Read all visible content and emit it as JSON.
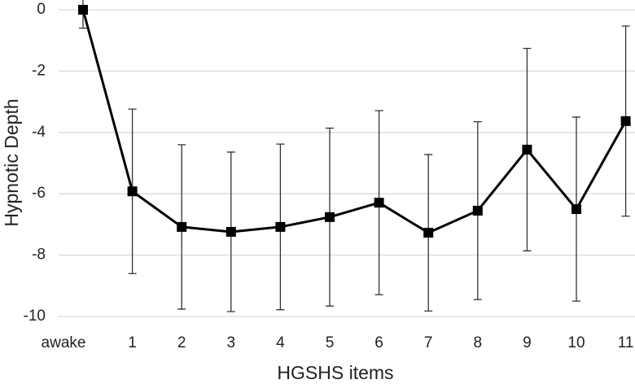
{
  "chart_data": {
    "type": "line",
    "x_label": "HGSHS items",
    "y_label": "Hypnotic Depth",
    "categories": [
      "awake",
      "1",
      "2",
      "3",
      "4",
      "5",
      "6",
      "7",
      "8",
      "9",
      "10",
      "11"
    ],
    "series": [
      {
        "color": "#000000",
        "values": [
          0,
          -5.92,
          -7.08,
          -7.24,
          -7.08,
          -6.76,
          -6.29,
          -7.27,
          -6.55,
          -4.56,
          -6.5,
          -3.63
        ],
        "errors": [
          0.6,
          2.68,
          2.68,
          2.6,
          2.7,
          2.9,
          3.0,
          2.55,
          2.9,
          3.3,
          3.0,
          3.1
        ]
      }
    ],
    "ylim": [
      -10,
      0
    ],
    "yticks": [
      0,
      -2,
      -4,
      -6,
      -8,
      -10
    ],
    "grid": true
  }
}
